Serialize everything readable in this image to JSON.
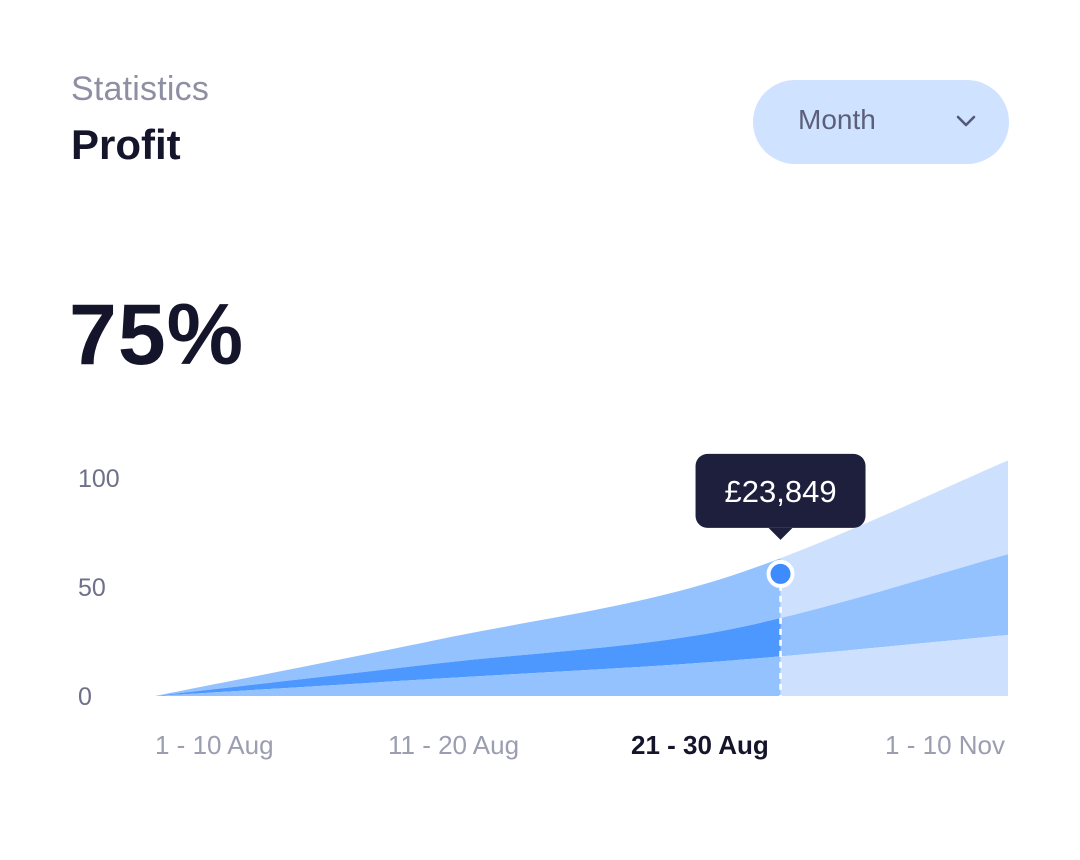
{
  "header": {
    "overline": "Statistics",
    "title": "Profit"
  },
  "period_select": {
    "selected": "Month",
    "icon": "chevron-down-icon"
  },
  "summary": {
    "value": "75%"
  },
  "colors": {
    "text_dark": "#14142b",
    "text_muted": "#8e8fa3",
    "pill_bg": "#cfe2ff",
    "area_light": "#cde1ff",
    "area_mid": "#94c2ff",
    "area_strong": "#4d98ff",
    "marker": "#3d8bfd",
    "tooltip_bg": "#1e1f3d"
  },
  "chart_data": {
    "type": "area",
    "categories": [
      "1 - 10 Aug",
      "11 - 20 Aug",
      "21 - 30 Aug",
      "1 - 10 Nov"
    ],
    "x": [
      0,
      1,
      2,
      3
    ],
    "ylim": [
      0,
      100
    ],
    "yticks": [
      "0",
      "50",
      "100"
    ],
    "active_category": "21 - 30 Aug",
    "series": [
      {
        "values": [
          0,
          8,
          16,
          28
        ]
      },
      {
        "values": [
          0,
          15,
          30,
          65
        ]
      },
      {
        "values": [
          0,
          26,
          54,
          108
        ]
      }
    ],
    "highlight": {
      "x": 2.2,
      "y": 56,
      "label": "£23,849"
    }
  }
}
